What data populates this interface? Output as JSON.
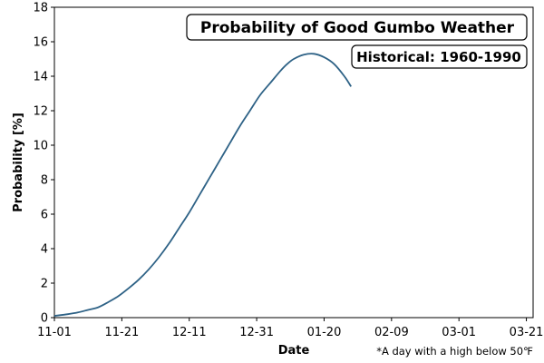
{
  "chart_data": {
    "type": "line",
    "title": "Probability of Good Gumbo Weather",
    "subtitle": "Historical: 1960-1990",
    "xlabel": "Date",
    "ylabel": "Probability [%]",
    "footnote": "*A day with a high below 50℉",
    "xlim": [
      "11-01",
      "03-23"
    ],
    "ylim": [
      0,
      18
    ],
    "x_ticks": [
      {
        "label": "11-01",
        "day": 0
      },
      {
        "label": "11-21",
        "day": 20
      },
      {
        "label": "12-11",
        "day": 40
      },
      {
        "label": "12-31",
        "day": 60
      },
      {
        "label": "01-20",
        "day": 80
      },
      {
        "label": "02-09",
        "day": 100
      },
      {
        "label": "03-01",
        "day": 120
      },
      {
        "label": "03-21",
        "day": 140
      }
    ],
    "y_ticks": [
      0,
      2,
      4,
      6,
      8,
      10,
      12,
      14,
      16,
      18
    ],
    "grid": false,
    "color": "#2e6286",
    "series": [
      {
        "name": "",
        "x": [
          "11-01",
          "11-05",
          "11-08",
          "11-11",
          "11-14",
          "11-17",
          "11-20",
          "11-23",
          "11-26",
          "11-29",
          "12-02",
          "12-05",
          "12-08",
          "12-11",
          "12-14",
          "12-17",
          "12-20",
          "12-23",
          "12-26",
          "12-29",
          "01-01",
          "01-04",
          "01-07",
          "01-09",
          "01-11",
          "01-14",
          "01-17",
          "01-20",
          "01-23",
          "01-26",
          "01-28"
        ],
        "y": [
          0.1,
          0.2,
          0.3,
          0.45,
          0.6,
          0.9,
          1.25,
          1.7,
          2.2,
          2.8,
          3.5,
          4.3,
          5.2,
          6.1,
          7.1,
          8.1,
          9.1,
          10.1,
          11.1,
          12.0,
          12.9,
          13.6,
          14.3,
          14.7,
          15.0,
          15.25,
          15.3,
          15.1,
          14.7,
          14.0,
          13.4
        ]
      }
    ]
  }
}
